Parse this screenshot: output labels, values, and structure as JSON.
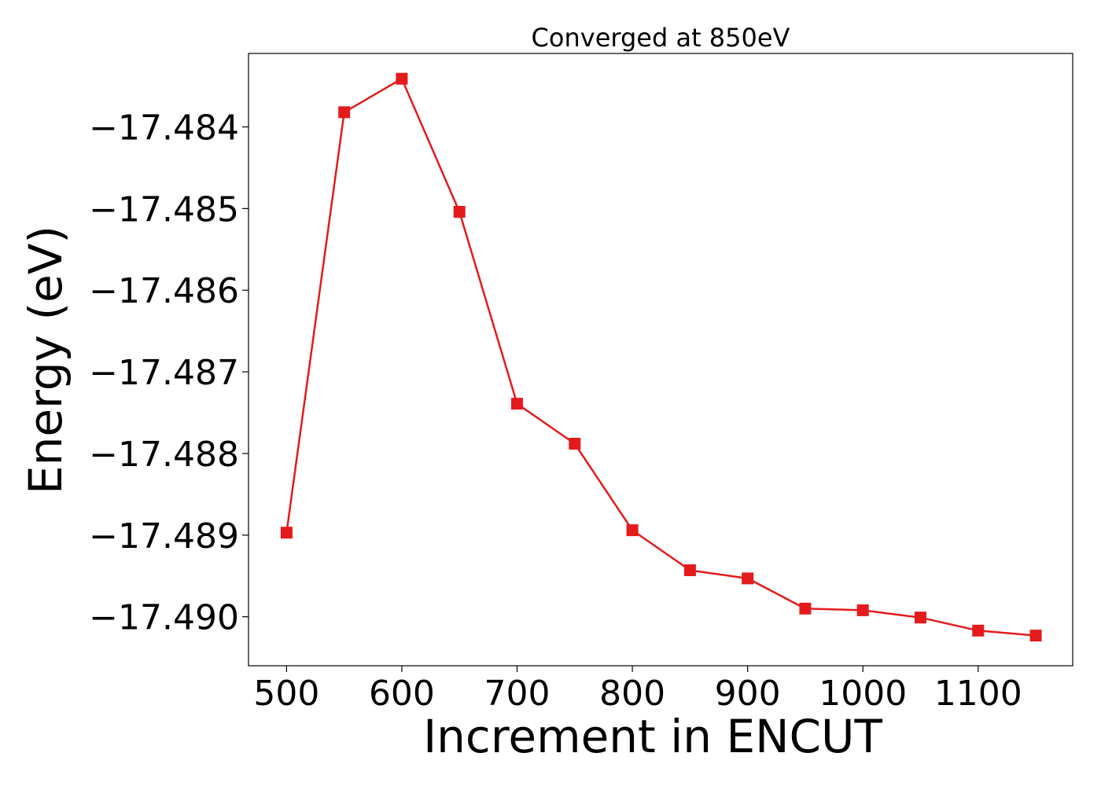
{
  "chart_data": {
    "type": "line",
    "title": "Converged at 850eV",
    "xlabel": "Increment in ENCUT",
    "ylabel": "Energy (eV)",
    "x": [
      500,
      550,
      600,
      650,
      700,
      750,
      800,
      850,
      900,
      950,
      1000,
      1050,
      1100,
      1150
    ],
    "series": [
      {
        "values": [
          -17.48897,
          -17.48382,
          -17.48341,
          -17.48504,
          -17.48739,
          -17.48788,
          -17.48894,
          -17.48943,
          -17.48953,
          -17.4899,
          -17.48992,
          -17.49001,
          -17.49017,
          -17.49023
        ],
        "color": "#e41a1c",
        "marker": "square"
      }
    ],
    "xlim": [
      467,
      1182
    ],
    "ylim": [
      -17.4906,
      -17.4831
    ],
    "xticks": [
      500,
      600,
      700,
      800,
      900,
      1000,
      1100
    ],
    "xtick_labels": [
      "500",
      "600",
      "700",
      "800",
      "900",
      "1000",
      "1100"
    ],
    "yticks": [
      -17.484,
      -17.485,
      -17.486,
      -17.487,
      -17.488,
      -17.489,
      -17.49
    ],
    "ytick_labels": [
      "−17.484",
      "−17.485",
      "−17.486",
      "−17.487",
      "−17.488",
      "−17.489",
      "−17.490"
    ],
    "grid": false,
    "legend": "none"
  }
}
